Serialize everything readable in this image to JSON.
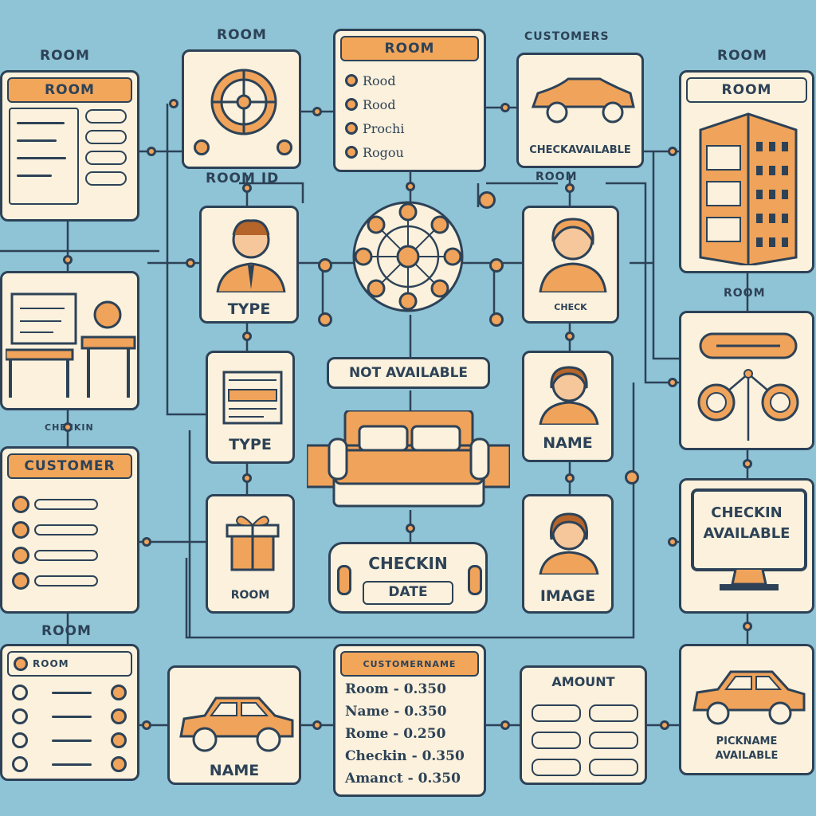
{
  "colors": {
    "background": "#8fc3d6",
    "card": "#fbf1dc",
    "accent": "#f0a35a",
    "line": "#2d4257"
  },
  "labels": {
    "room_top_left": "ROOM",
    "room_top_center": "ROOM",
    "customers": "CUSTOMERS",
    "room_top_right": "ROOM",
    "room_id": "ROOM ID",
    "room_right_mid": "ROOM",
    "room_right_lower": "ROOM",
    "room_bottom_left": "ROOM",
    "checkin_left": "CHECKIN"
  },
  "cards": {
    "room_form": {
      "header": "ROOM"
    },
    "room_list": {
      "header": "ROOM",
      "items": [
        "Rood",
        "Rood",
        "Prochi",
        "Rogou"
      ]
    },
    "car_card": {
      "caption": "CHECKAVAILABLE"
    },
    "building_card": {
      "header": "ROOM"
    },
    "person_type": {
      "caption": "TYPE"
    },
    "person_right": {
      "caption": "CHECK"
    },
    "doc_type": {
      "caption": "TYPE"
    },
    "person_name": {
      "caption": "NAME"
    },
    "not_available": "NOT AVAILABLE",
    "gift_card": {
      "caption": "ROOM"
    },
    "person_image": {
      "caption": "IMAGE"
    },
    "checkin_date": {
      "line1": "CHECKIN",
      "line2": "DATE"
    },
    "monitor": {
      "line1": "CHECKIN",
      "line2": "AVAILABLE"
    },
    "customer_list": {
      "header": "CUSTOMER"
    },
    "room_list_bottom": {
      "header": "ROOM"
    },
    "car_name": {
      "caption": "NAME"
    },
    "customer_name": {
      "header": "CUSTOMERNAME",
      "rows": [
        {
          "label": "Room",
          "value": "0.350"
        },
        {
          "label": "Name",
          "value": "0.350"
        },
        {
          "label": "Rome",
          "value": "0.250"
        },
        {
          "label": "Checkin",
          "value": "0.350"
        },
        {
          "label": "Amanct",
          "value": "0.350"
        }
      ]
    },
    "amount_card": {
      "caption": "AMOUNT"
    },
    "car_right": {
      "line1": "PICKNAME",
      "line2": "AVAILABLE"
    }
  }
}
